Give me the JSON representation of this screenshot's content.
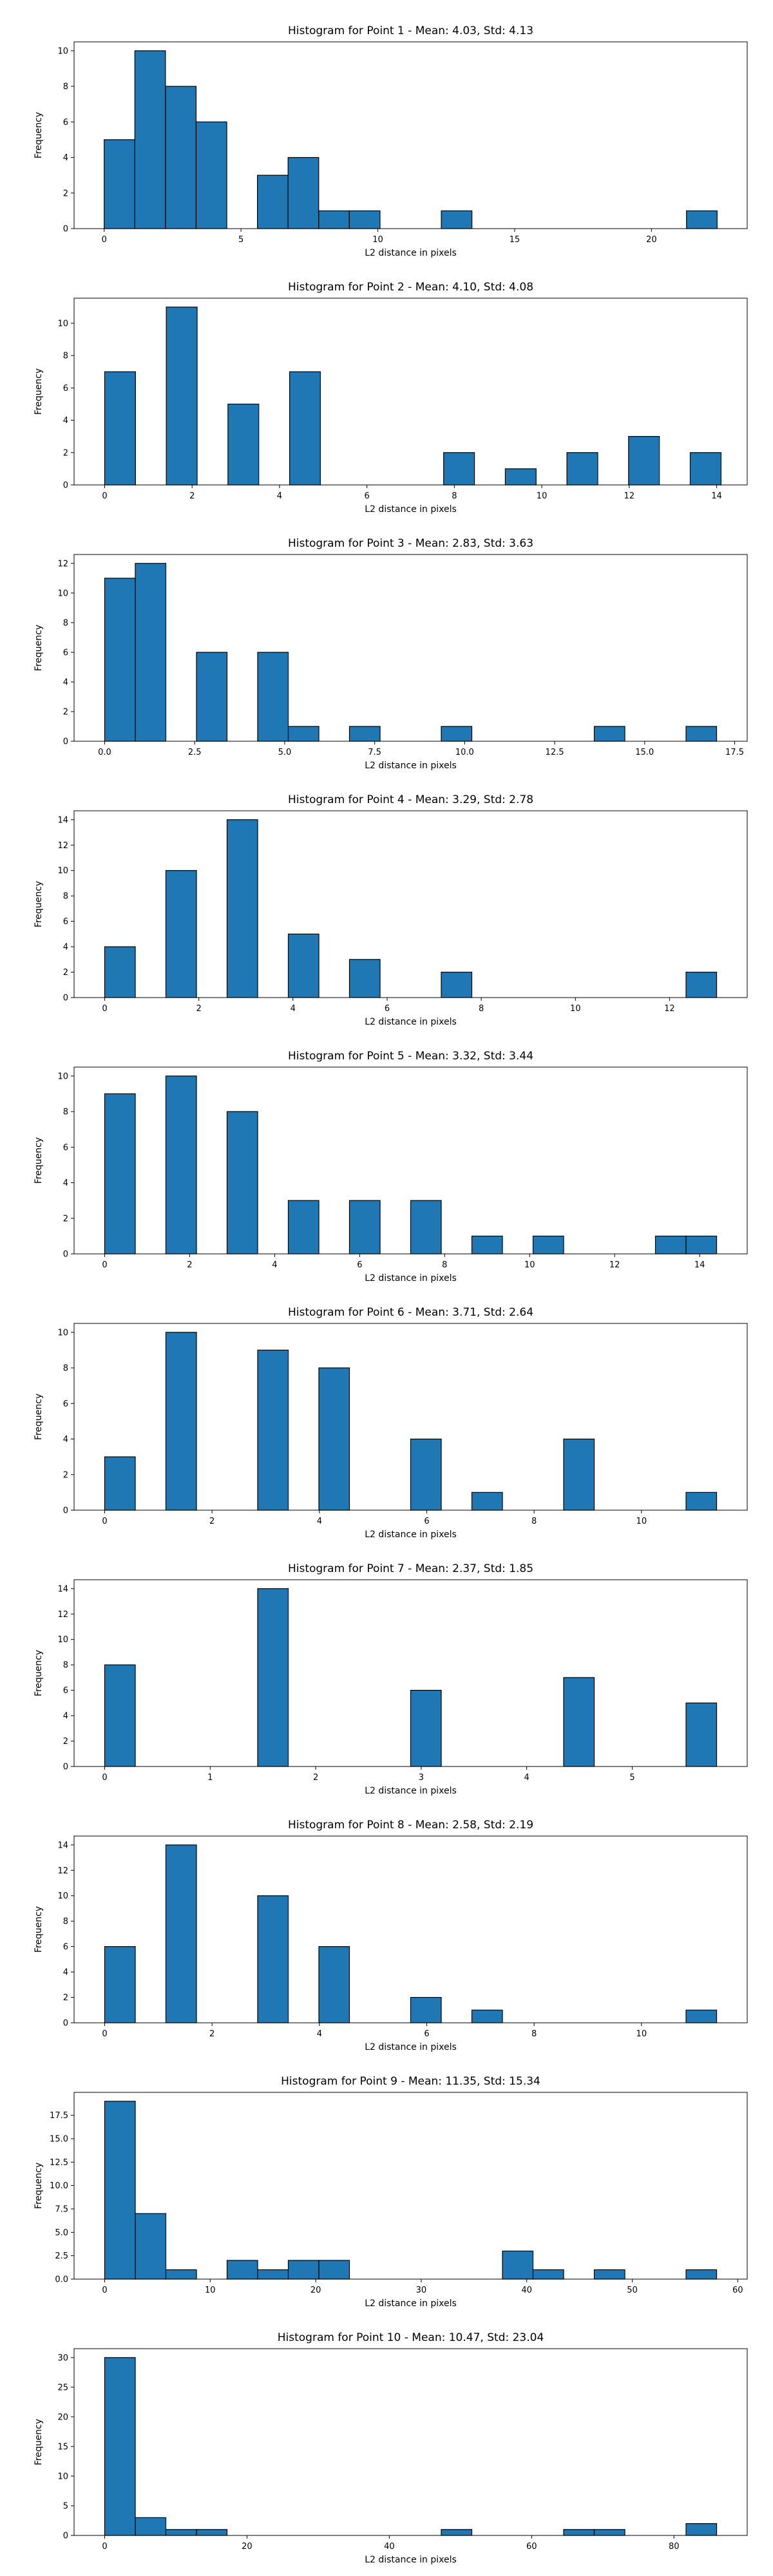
{
  "colors": {
    "bar_fill": "#1f77b4",
    "bar_edge": "#000000",
    "axis": "#000000",
    "background": "#ffffff"
  },
  "chart_data": [
    {
      "type": "bar",
      "title": "Histogram for Point 1 - Mean: 4.03, Std: 4.13",
      "xlabel": "L2 distance in pixels",
      "ylabel": "Frequency",
      "xlim": [
        -1.1,
        23.5
      ],
      "ylim": [
        0,
        10.5
      ],
      "xticks": [
        0,
        5,
        10,
        15,
        20
      ],
      "xtick_labels": [
        "0",
        "5",
        "10",
        "15",
        "20"
      ],
      "yticks": [
        0,
        2,
        4,
        6,
        8,
        10
      ],
      "ytick_labels": [
        "0",
        "2",
        "4",
        "6",
        "8",
        "10"
      ],
      "bin_edges": [
        0.0,
        1.12,
        2.24,
        3.36,
        4.48,
        5.6,
        6.72,
        7.84,
        8.96,
        10.08,
        11.2,
        12.32,
        13.44,
        14.56,
        15.68,
        16.8,
        17.92,
        19.04,
        20.16,
        21.28,
        22.4
      ],
      "counts": [
        5,
        10,
        8,
        6,
        0,
        3,
        4,
        1,
        1,
        0,
        0,
        1,
        0,
        0,
        0,
        0,
        0,
        0,
        0,
        1
      ]
    },
    {
      "type": "bar",
      "title": "Histogram for Point 2 - Mean: 4.10, Std: 4.08",
      "xlabel": "L2 distance in pixels",
      "ylabel": "Frequency",
      "xlim": [
        -0.7,
        14.7
      ],
      "ylim": [
        0,
        11.55
      ],
      "xticks": [
        0,
        2,
        4,
        6,
        8,
        10,
        12,
        14
      ],
      "xtick_labels": [
        "0",
        "2",
        "4",
        "6",
        "8",
        "10",
        "12",
        "14"
      ],
      "yticks": [
        0,
        2,
        4,
        6,
        8,
        10
      ],
      "ytick_labels": [
        "0",
        "2",
        "4",
        "6",
        "8",
        "10"
      ],
      "bin_edges": [
        0.0,
        0.705,
        1.41,
        2.115,
        2.82,
        3.525,
        4.23,
        4.935,
        5.64,
        6.345,
        7.05,
        7.755,
        8.46,
        9.165,
        9.87,
        10.575,
        11.28,
        11.985,
        12.69,
        13.395,
        14.1
      ],
      "counts": [
        7,
        0,
        11,
        0,
        5,
        0,
        7,
        0,
        0,
        0,
        0,
        2,
        0,
        1,
        0,
        2,
        0,
        3,
        0,
        2
      ]
    },
    {
      "type": "bar",
      "title": "Histogram for Point 3 - Mean: 2.83, Std: 3.63",
      "xlabel": "L2 distance in pixels",
      "ylabel": "Frequency",
      "xlim": [
        -0.85,
        17.85
      ],
      "ylim": [
        0,
        12.6
      ],
      "xticks": [
        0.0,
        2.5,
        5.0,
        7.5,
        10.0,
        12.5,
        15.0,
        17.5
      ],
      "xtick_labels": [
        "0.0",
        "2.5",
        "5.0",
        "7.5",
        "10.0",
        "12.5",
        "15.0",
        "17.5"
      ],
      "yticks": [
        0,
        2,
        4,
        6,
        8,
        10,
        12
      ],
      "ytick_labels": [
        "0",
        "2",
        "4",
        "6",
        "8",
        "10",
        "12"
      ],
      "bin_edges": [
        0.0,
        0.85,
        1.7,
        2.55,
        3.4,
        4.25,
        5.1,
        5.95,
        6.8,
        7.65,
        8.5,
        9.35,
        10.2,
        11.05,
        11.9,
        12.75,
        13.6,
        14.45,
        15.3,
        16.15,
        17.0
      ],
      "counts": [
        11,
        12,
        0,
        6,
        0,
        6,
        1,
        0,
        1,
        0,
        0,
        1,
        0,
        0,
        0,
        0,
        1,
        0,
        0,
        1
      ]
    },
    {
      "type": "bar",
      "title": "Histogram for Point 4 - Mean: 3.29, Std: 2.78",
      "xlabel": "L2 distance in pixels",
      "ylabel": "Frequency",
      "xlim": [
        -0.65,
        13.65
      ],
      "ylim": [
        0,
        14.7
      ],
      "xticks": [
        0,
        2,
        4,
        6,
        8,
        10,
        12
      ],
      "xtick_labels": [
        "0",
        "2",
        "4",
        "6",
        "8",
        "10",
        "12"
      ],
      "yticks": [
        0,
        2,
        4,
        6,
        8,
        10,
        12,
        14
      ],
      "ytick_labels": [
        "0",
        "2",
        "4",
        "6",
        "8",
        "10",
        "12",
        "14"
      ],
      "bin_edges": [
        0.0,
        0.65,
        1.3,
        1.95,
        2.6,
        3.25,
        3.9,
        4.55,
        5.2,
        5.85,
        6.5,
        7.15,
        7.8,
        8.45,
        9.1,
        9.75,
        10.4,
        11.05,
        11.7,
        12.35,
        13.0
      ],
      "counts": [
        4,
        0,
        10,
        0,
        14,
        0,
        5,
        0,
        3,
        0,
        0,
        2,
        0,
        0,
        0,
        0,
        0,
        0,
        0,
        2
      ]
    },
    {
      "type": "bar",
      "title": "Histogram for Point 5 - Mean: 3.32, Std: 3.44",
      "xlabel": "L2 distance in pixels",
      "ylabel": "Frequency",
      "xlim": [
        -0.72,
        15.12
      ],
      "ylim": [
        0,
        10.5
      ],
      "xticks": [
        0,
        2,
        4,
        6,
        8,
        10,
        12,
        14
      ],
      "xtick_labels": [
        "0",
        "2",
        "4",
        "6",
        "8",
        "10",
        "12",
        "14"
      ],
      "yticks": [
        0,
        2,
        4,
        6,
        8,
        10
      ],
      "ytick_labels": [
        "0",
        "2",
        "4",
        "6",
        "8",
        "10"
      ],
      "bin_edges": [
        0.0,
        0.72,
        1.44,
        2.16,
        2.88,
        3.6,
        4.32,
        5.04,
        5.76,
        6.48,
        7.2,
        7.92,
        8.64,
        9.36,
        10.08,
        10.8,
        11.52,
        12.24,
        12.96,
        13.68,
        14.4
      ],
      "counts": [
        9,
        0,
        10,
        0,
        8,
        0,
        3,
        0,
        3,
        0,
        3,
        0,
        1,
        0,
        1,
        0,
        0,
        0,
        1,
        1
      ]
    },
    {
      "type": "bar",
      "title": "Histogram for Point 6 - Mean: 3.71, Std: 2.64",
      "xlabel": "L2 distance in pixels",
      "ylabel": "Frequency",
      "xlim": [
        -0.57,
        11.97
      ],
      "ylim": [
        0,
        10.5
      ],
      "xticks": [
        0,
        2,
        4,
        6,
        8,
        10
      ],
      "xtick_labels": [
        "0",
        "2",
        "4",
        "6",
        "8",
        "10"
      ],
      "yticks": [
        0,
        2,
        4,
        6,
        8,
        10
      ],
      "ytick_labels": [
        "0",
        "2",
        "4",
        "6",
        "8",
        "10"
      ],
      "bin_edges": [
        0.0,
        0.57,
        1.14,
        1.71,
        2.28,
        2.85,
        3.42,
        3.99,
        4.56,
        5.13,
        5.7,
        6.27,
        6.84,
        7.41,
        7.98,
        8.55,
        9.12,
        9.69,
        10.26,
        10.83,
        11.4
      ],
      "counts": [
        3,
        0,
        10,
        0,
        0,
        9,
        0,
        8,
        0,
        0,
        4,
        0,
        1,
        0,
        0,
        4,
        0,
        0,
        0,
        1
      ]
    },
    {
      "type": "bar",
      "title": "Histogram for Point 7 - Mean: 2.37, Std: 1.85",
      "xlabel": "L2 distance in pixels",
      "ylabel": "Frequency",
      "xlim": [
        -0.29,
        6.09
      ],
      "ylim": [
        0,
        14.7
      ],
      "xticks": [
        0,
        1,
        2,
        3,
        4,
        5
      ],
      "xtick_labels": [
        "0",
        "1",
        "2",
        "3",
        "4",
        "5"
      ],
      "yticks": [
        0,
        2,
        4,
        6,
        8,
        10,
        12,
        14
      ],
      "ytick_labels": [
        "0",
        "2",
        "4",
        "6",
        "8",
        "10",
        "12",
        "14"
      ],
      "bin_edges": [
        0.0,
        0.29,
        0.58,
        0.87,
        1.16,
        1.45,
        1.74,
        2.03,
        2.32,
        2.61,
        2.9,
        3.19,
        3.48,
        3.77,
        4.06,
        4.35,
        4.64,
        4.93,
        5.22,
        5.51,
        5.8
      ],
      "counts": [
        8,
        0,
        0,
        0,
        0,
        14,
        0,
        0,
        0,
        0,
        6,
        0,
        0,
        0,
        0,
        7,
        0,
        0,
        0,
        5
      ]
    },
    {
      "type": "bar",
      "title": "Histogram for Point 8 - Mean: 2.58, Std: 2.19",
      "xlabel": "L2 distance in pixels",
      "ylabel": "Frequency",
      "xlim": [
        -0.57,
        11.97
      ],
      "ylim": [
        0,
        14.7
      ],
      "xticks": [
        0,
        2,
        4,
        6,
        8,
        10
      ],
      "xtick_labels": [
        "0",
        "2",
        "4",
        "6",
        "8",
        "10"
      ],
      "yticks": [
        0,
        2,
        4,
        6,
        8,
        10,
        12,
        14
      ],
      "ytick_labels": [
        "0",
        "2",
        "4",
        "6",
        "8",
        "10",
        "12",
        "14"
      ],
      "bin_edges": [
        0.0,
        0.57,
        1.14,
        1.71,
        2.28,
        2.85,
        3.42,
        3.99,
        4.56,
        5.13,
        5.7,
        6.27,
        6.84,
        7.41,
        7.98,
        8.55,
        9.12,
        9.69,
        10.26,
        10.83,
        11.4
      ],
      "counts": [
        6,
        0,
        14,
        0,
        0,
        10,
        0,
        6,
        0,
        0,
        2,
        0,
        1,
        0,
        0,
        0,
        0,
        0,
        0,
        1
      ]
    },
    {
      "type": "bar",
      "title": "Histogram for Point 9 - Mean: 11.35, Std: 15.34",
      "xlabel": "L2 distance in pixels",
      "ylabel": "Frequency",
      "xlim": [
        -2.9,
        60.9
      ],
      "ylim": [
        0,
        19.95
      ],
      "xticks": [
        0,
        10,
        20,
        30,
        40,
        50,
        60
      ],
      "xtick_labels": [
        "0",
        "10",
        "20",
        "30",
        "40",
        "50",
        "60"
      ],
      "yticks": [
        0,
        2.5,
        5,
        7.5,
        10,
        12.5,
        15,
        17.5
      ],
      "ytick_labels": [
        "0.0",
        "2.5",
        "5.0",
        "7.5",
        "10.0",
        "12.5",
        "15.0",
        "17.5"
      ],
      "bin_edges": [
        0.0,
        2.9,
        5.8,
        8.7,
        11.6,
        14.5,
        17.4,
        20.3,
        23.2,
        26.1,
        29.0,
        31.9,
        34.8,
        37.7,
        40.6,
        43.5,
        46.4,
        49.3,
        52.2,
        55.1,
        58.0
      ],
      "counts": [
        19,
        7,
        1,
        0,
        2,
        1,
        2,
        2,
        0,
        0,
        0,
        0,
        0,
        3,
        1,
        0,
        1,
        0,
        0,
        1
      ]
    },
    {
      "type": "bar",
      "title": "Histogram for Point 10 - Mean: 10.47, Std: 23.04",
      "xlabel": "L2 distance in pixels",
      "ylabel": "Frequency",
      "xlim": [
        -4.3,
        90.3
      ],
      "ylim": [
        0,
        31.5
      ],
      "xticks": [
        0,
        20,
        40,
        60,
        80
      ],
      "xtick_labels": [
        "0",
        "20",
        "40",
        "60",
        "80"
      ],
      "yticks": [
        0,
        5,
        10,
        15,
        20,
        25,
        30
      ],
      "ytick_labels": [
        "0",
        "5",
        "10",
        "15",
        "20",
        "25",
        "30"
      ],
      "bin_edges": [
        0.0,
        4.3,
        8.6,
        12.9,
        17.2,
        21.5,
        25.8,
        30.1,
        34.4,
        38.7,
        43.0,
        47.3,
        51.6,
        55.9,
        60.2,
        64.5,
        68.8,
        73.1,
        77.4,
        81.7,
        86.0
      ],
      "counts": [
        30,
        3,
        1,
        1,
        0,
        0,
        0,
        0,
        0,
        0,
        0,
        1,
        0,
        0,
        0,
        1,
        1,
        0,
        0,
        2
      ]
    }
  ]
}
